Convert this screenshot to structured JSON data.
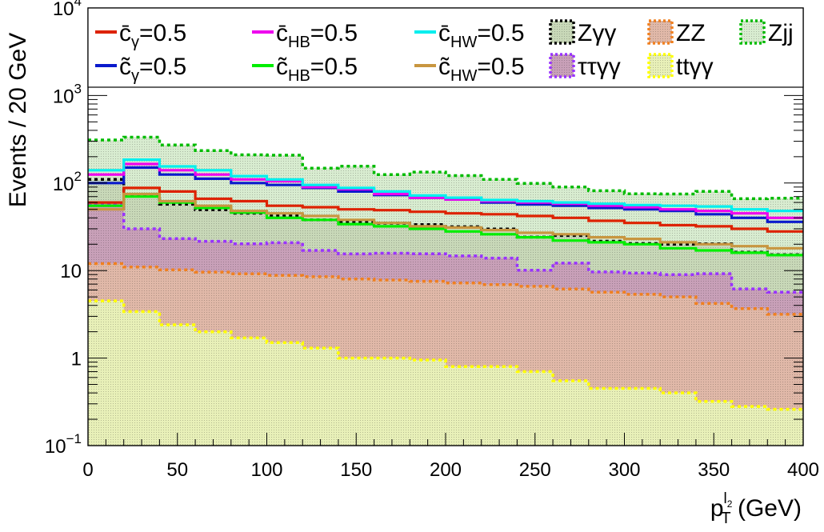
{
  "chart_data": {
    "type": "histogram",
    "stacked_backgrounds": true,
    "log_y": true,
    "xlabel": {
      "base": "p",
      "sup": "l",
      "sup_sub": "2",
      "sub": "T",
      "unit": "(GeV)"
    },
    "ylabel": "Events / 20 GeV",
    "xlim": [
      0,
      400
    ],
    "ylim": [
      0.1,
      10000
    ],
    "bin_width": 20,
    "x_ticks": [
      0,
      50,
      100,
      150,
      200,
      250,
      300,
      350,
      400
    ],
    "y_ticks": [
      {
        "value": 0.1,
        "base": "10",
        "exp": "−1"
      },
      {
        "value": 1,
        "base": "1",
        "exp": ""
      },
      {
        "value": 10,
        "base": "10",
        "exp": ""
      },
      {
        "value": 100,
        "base": "10",
        "exp": "2"
      },
      {
        "value": 1000,
        "base": "10",
        "exp": "3"
      },
      {
        "value": 10000,
        "base": "10",
        "exp": "4"
      }
    ],
    "backgrounds": [
      {
        "key": "ttgg",
        "name": "ttγγ",
        "color": "#ffff00",
        "fill": "#e8f0b8",
        "values": [
          4.5,
          3.4,
          2.4,
          2.0,
          1.7,
          1.5,
          1.3,
          1.0,
          1.0,
          0.95,
          0.8,
          0.8,
          0.7,
          0.55,
          0.45,
          0.45,
          0.4,
          0.32,
          0.28,
          0.26
        ]
      },
      {
        "key": "ZZ",
        "name": "ZZ",
        "color": "#f08020",
        "fill": "#e0b8a8",
        "values": [
          7.5,
          7.6,
          7.8,
          7.6,
          7.5,
          7.3,
          7.2,
          7.0,
          6.8,
          6.6,
          6.4,
          6.1,
          5.9,
          5.6,
          5.2,
          4.9,
          4.6,
          3.9,
          3.4,
          2.9
        ]
      },
      {
        "key": "tautaugg",
        "name": "ττγγ",
        "color": "#9933ff",
        "fill": "#c8a0b8",
        "values": [
          46,
          19,
          13,
          12,
          11,
          12,
          8.5,
          7.5,
          8,
          8,
          7.5,
          7,
          3.5,
          6,
          4,
          4,
          4,
          5,
          2.5,
          2.5
        ]
      },
      {
        "key": "Zgg",
        "name": "Zγγ",
        "color": "#000000",
        "fill": "#c8d8b8",
        "values": [
          52,
          44,
          34,
          28,
          25,
          22,
          21,
          20,
          19,
          18,
          17,
          16,
          14,
          13,
          12,
          11,
          11,
          11,
          10,
          9.5
        ]
      },
      {
        "key": "Zjj",
        "name": "Zjj",
        "color": "#00bb00",
        "fill": "#d8ecd0",
        "values": [
          200,
          260,
          215,
          185,
          165,
          165,
          110,
          120,
          90,
          100,
          90,
          80,
          75,
          65,
          60,
          55,
          55,
          60,
          50,
          52
        ]
      }
    ],
    "signals": [
      {
        "key": "cbar_gamma",
        "name": "c̄",
        "sub": "γ",
        "value": "=0.5",
        "color": "#dd2200",
        "values": [
          60,
          88,
          80,
          66,
          62,
          55,
          53,
          50,
          49,
          47,
          45,
          44,
          42,
          40,
          37,
          35,
          33,
          32,
          30,
          28
        ]
      },
      {
        "key": "ctilde_gamma",
        "name": "c̃",
        "sub": "γ",
        "value": "=0.5",
        "color": "#0a1acc",
        "values": [
          100,
          150,
          125,
          112,
          100,
          95,
          88,
          80,
          73,
          68,
          65,
          60,
          57,
          55,
          52,
          50,
          48,
          44,
          40,
          36
        ]
      },
      {
        "key": "cbar_HB",
        "name": "c̄",
        "sub": "HB",
        "value": "=0.5",
        "color": "#ee00ee",
        "values": [
          125,
          165,
          140,
          125,
          110,
          105,
          90,
          85,
          75,
          68,
          65,
          62,
          60,
          58,
          55,
          53,
          50,
          48,
          45,
          40
        ]
      },
      {
        "key": "ctilde_HB",
        "name": "c̃",
        "sub": "HB",
        "value": "=0.5",
        "color": "#00ee00",
        "values": [
          55,
          70,
          60,
          52,
          46,
          40,
          38,
          34,
          32,
          30,
          28,
          26,
          24,
          22,
          21,
          20,
          18,
          17,
          16,
          15
        ]
      },
      {
        "key": "cbar_HW",
        "name": "c̄",
        "sub": "HW",
        "value": "=0.5",
        "color": "#00eeee",
        "values": [
          140,
          185,
          155,
          140,
          120,
          110,
          95,
          88,
          80,
          72,
          68,
          64,
          62,
          60,
          58,
          56,
          55,
          54,
          50,
          48
        ]
      },
      {
        "key": "ctilde_HW",
        "name": "c̃",
        "sub": "HW",
        "value": "=0.5",
        "color": "#c89640",
        "values": [
          50,
          75,
          62,
          55,
          48,
          45,
          42,
          38,
          35,
          32,
          31,
          29,
          27,
          26,
          24,
          23,
          21,
          20,
          19,
          18
        ]
      }
    ],
    "legend_position": "top",
    "legend_order": [
      [
        "cbar_gamma",
        "cbar_HB",
        "cbar_HW",
        "Zgg",
        "ZZ",
        "Zjj"
      ],
      [
        "ctilde_gamma",
        "ctilde_HB",
        "ctilde_HW",
        "tautaugg",
        "ttgg"
      ]
    ]
  }
}
